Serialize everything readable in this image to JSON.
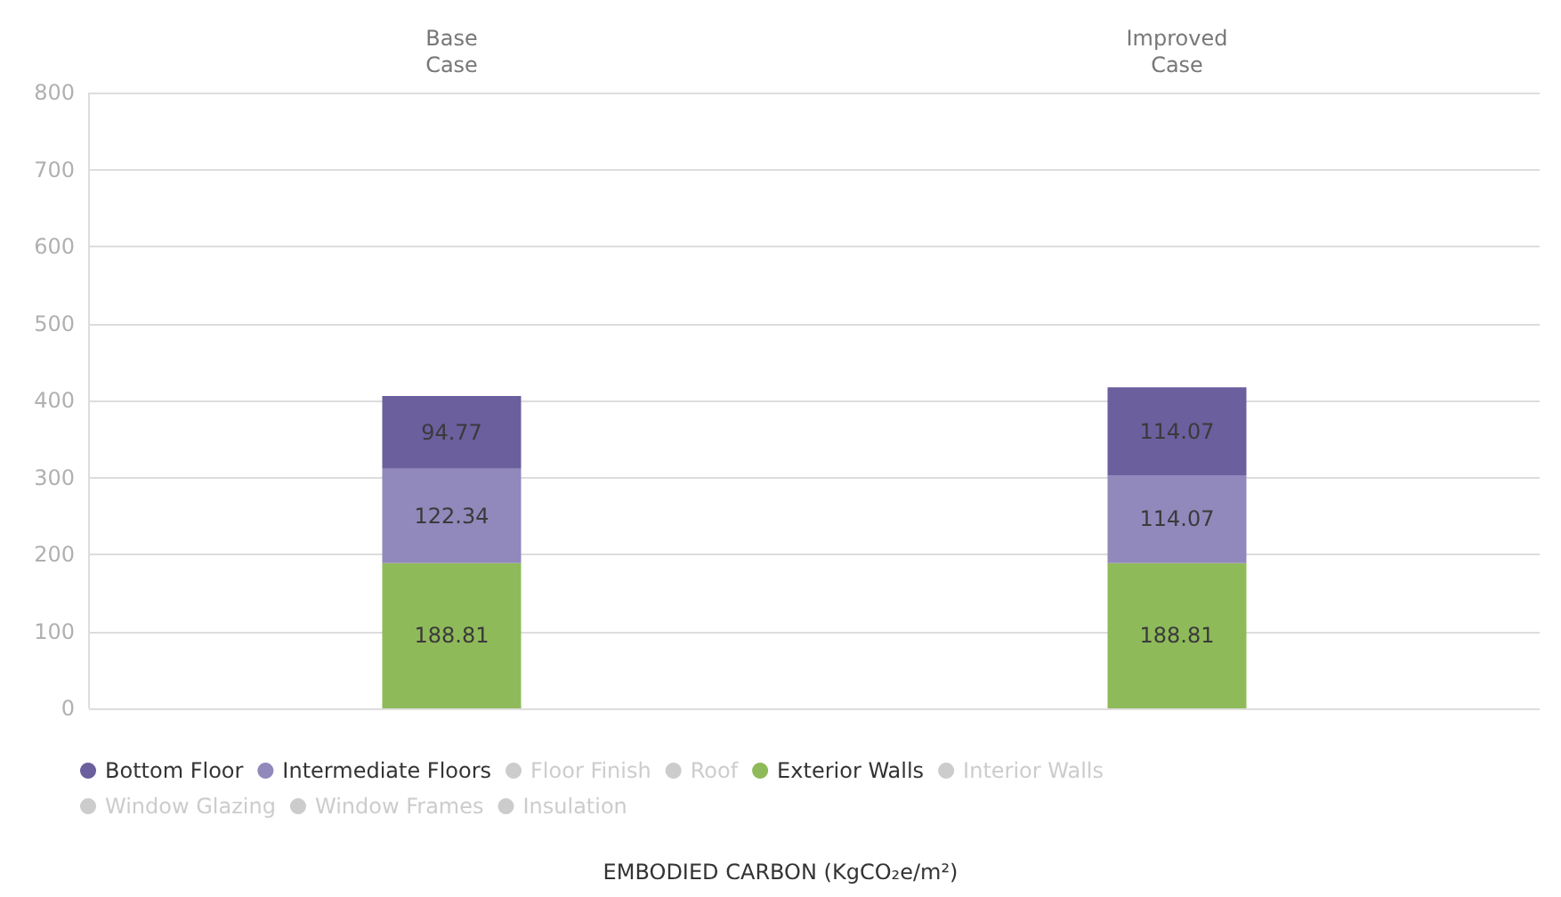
{
  "chart_data": {
    "type": "bar",
    "stacked": true,
    "data_labels": true,
    "grid": "y",
    "legend": "bottom left",
    "annotations": [
      "EMBODIED CARBON (KgCO₂e/m²)"
    ],
    "categories": [
      "Base\nCase",
      "Improved\nCase"
    ],
    "ylim": [
      0,
      800
    ],
    "yticks": [
      0,
      100,
      200,
      300,
      400,
      500,
      600,
      700,
      800
    ],
    "series": [
      {
        "name": "Exterior Walls",
        "color": "#8fba5a",
        "values": [
          188.81,
          188.81
        ]
      },
      {
        "name": "Intermediate Floors",
        "color": "#9188bb",
        "values": [
          122.34,
          114.07
        ]
      },
      {
        "name": "Bottom Floor",
        "color": "#6b5f9e",
        "values": [
          94.77,
          114.07
        ]
      },
      {
        "name": "Floor Finish",
        "color": "#cccccc",
        "values": [
          null,
          null
        ]
      },
      {
        "name": "Roof",
        "color": "#cccccc",
        "values": [
          null,
          null
        ]
      },
      {
        "name": "Interior Walls",
        "color": "#cccccc",
        "values": [
          null,
          null
        ]
      },
      {
        "name": "Window Glazing",
        "color": "#cccccc",
        "values": [
          null,
          null
        ]
      },
      {
        "name": "Window Frames",
        "color": "#cccccc",
        "values": [
          null,
          null
        ]
      },
      {
        "name": "Insulation",
        "color": "#cccccc",
        "values": [
          null,
          null
        ]
      }
    ]
  }
}
